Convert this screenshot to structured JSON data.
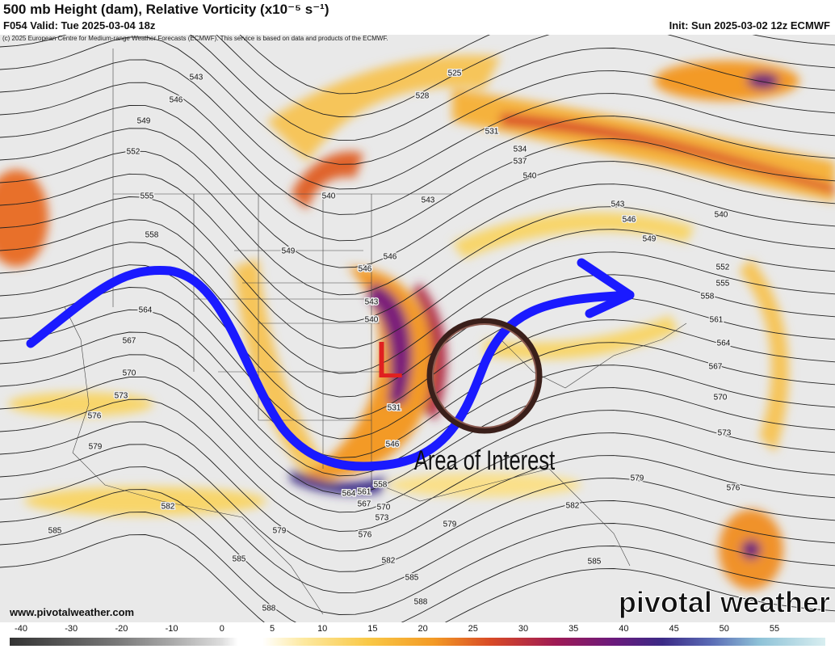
{
  "header": {
    "title": "500 mb Height (dam), Relative Vorticity (x10⁻⁵ s⁻¹)",
    "valid": "F054 Valid: Tue 2025-03-04 18z",
    "init": "Init: Sun 2025-03-02 12z ECMWF",
    "credit": "(c) 2025 European Centre for Medium-range Weather Forecasts (ECMWF). This service is based on data and products of the ECMWF."
  },
  "map": {
    "low_label": "L",
    "annotation": "Area of Interest",
    "contour_labels": [
      543,
      546,
      549,
      552,
      555,
      558,
      564,
      567,
      570,
      573,
      576,
      579,
      582,
      585,
      585,
      588,
      579,
      576,
      582,
      585,
      588,
      579,
      573,
      570,
      567,
      564,
      561,
      558,
      525,
      528,
      531,
      534,
      537,
      540,
      540,
      543,
      549,
      546,
      546,
      543,
      540,
      543,
      546,
      549,
      540,
      552,
      555,
      558,
      561,
      564,
      567,
      570,
      573,
      576,
      579,
      582,
      585,
      531,
      546
    ]
  },
  "footer": {
    "url": "www.pivotalweather.com",
    "watermark": "pivotal weather"
  },
  "colorbar": {
    "ticks": [
      -40,
      -30,
      -20,
      -10,
      0,
      5,
      10,
      15,
      20,
      25,
      30,
      35,
      40,
      45,
      50,
      55
    ]
  }
}
